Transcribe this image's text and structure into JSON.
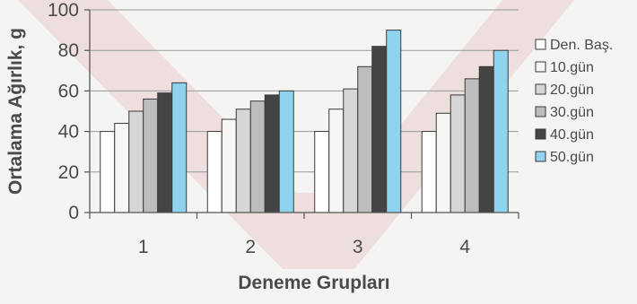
{
  "chart_data": {
    "type": "bar",
    "xlabel": "Deneme Grupları",
    "ylabel": "Ortalama Ağırlık, g",
    "ylim": [
      0,
      100
    ],
    "yticks": [
      0,
      20,
      40,
      60,
      80,
      100
    ],
    "categories": [
      "1",
      "2",
      "3",
      "4"
    ],
    "grid": true,
    "legend_position": "right",
    "series": [
      {
        "name": "Den. Baş.",
        "color": "#ffffff",
        "values": [
          40,
          40,
          40,
          40
        ]
      },
      {
        "name": "10.gün",
        "color": "#f6f6f4",
        "values": [
          44,
          46,
          51,
          49
        ]
      },
      {
        "name": "20.gün",
        "color": "#d6d6d6",
        "values": [
          50,
          51,
          61,
          58
        ]
      },
      {
        "name": "30.gün",
        "color": "#bdbdbd",
        "values": [
          56,
          55,
          72,
          66
        ]
      },
      {
        "name": "40.gün",
        "color": "#444444",
        "values": [
          59,
          58,
          82,
          72
        ]
      },
      {
        "name": "50.gün",
        "color": "#8fd3ef",
        "values": [
          64,
          60,
          90,
          80
        ]
      }
    ]
  }
}
